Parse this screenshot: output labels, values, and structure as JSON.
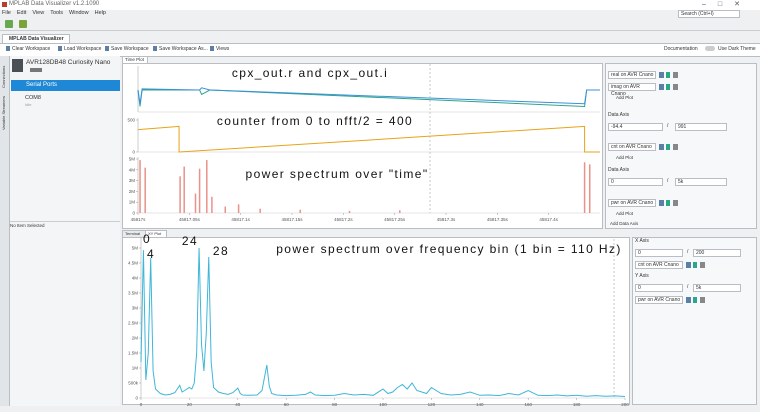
{
  "app": {
    "title": "MPLAB Data Visualizer v1.2.1090",
    "menu": [
      "File",
      "Edit",
      "View",
      "Tools",
      "Window",
      "Help"
    ],
    "search": "Search (Ctrl+I)",
    "tab": "MPLAB Data Visualizer",
    "toolbar": [
      "Clear Workspace",
      "Load Workspace",
      "Save Workspace",
      "Save Workspace As...",
      "Views"
    ],
    "documentation": "Documentation",
    "theme": "Use Dark Theme"
  },
  "sidebar": {
    "tabs": [
      "Connections",
      "Variable Streamers"
    ],
    "device": "AVR128DB48 Curiosity Nano",
    "serial_ports": "Serial Ports",
    "port": "COM8",
    "port_status": "Idle",
    "status": "No Item Selected"
  },
  "time_plot": {
    "tab": "Time Plot"
  },
  "time_settings": {
    "axes": [
      {
        "sources": [
          "real on AVR Cnano",
          "imag on AVR Cnano"
        ],
        "add_plot": "Add Plot"
      },
      {
        "label": "Data Axis",
        "min": "-94.4",
        "sep": "/",
        "max": "991",
        "sources": [
          "cnt on AVR Cnano"
        ],
        "add_plot": "Add Plot"
      },
      {
        "label": "Data Axis",
        "min": "0",
        "sep": "/",
        "max": "5k",
        "sources": [
          "pwr on AVR Cnano"
        ],
        "add_plot": "Add Plot"
      }
    ],
    "add_axis": "Add Data Axis"
  },
  "xy_plot": {
    "tabs": [
      "Terminal",
      "XY Plot"
    ]
  },
  "xy_settings": {
    "axes": [
      {
        "label": "X Axis",
        "min": "0",
        "sep": "/",
        "max": "200",
        "sources": [
          "cnt on AVR Cnano"
        ]
      },
      {
        "label": "Y Axis",
        "min": "0",
        "sep": "/",
        "max": "5k",
        "sources": [
          "pwr on AVR Cnano"
        ]
      }
    ]
  },
  "chart_data": [
    {
      "type": "line",
      "annotations": [
        "cpx_out.r and cpx_out.i"
      ],
      "xlim": [
        45817,
        45817.45
      ],
      "ylim": [
        -400,
        400
      ],
      "series": [
        {
          "color": "#2ca58d",
          "x": [
            45817,
            45817.002,
            45817.004,
            45817.06,
            45817.062,
            45817.07,
            45817.435,
            45817.437,
            45817.45
          ],
          "values": [
            0,
            -300,
            0,
            0,
            -80,
            0,
            -300,
            0,
            0
          ]
        },
        {
          "color": "#3b8fd9",
          "x": [
            45817,
            45817.002,
            45817.004,
            45817.06,
            45817.062,
            45817.07,
            45817.435,
            45817.437,
            45817.45
          ],
          "values": [
            0,
            -250,
            20,
            0,
            40,
            0,
            -250,
            0,
            0
          ]
        }
      ]
    },
    {
      "type": "line",
      "annotations": [
        "counter from 0 to nfft/2 = 400"
      ],
      "xlim": [
        45817,
        45817.45
      ],
      "ylim": [
        0,
        500
      ],
      "yticks": [
        0,
        500
      ],
      "series": [
        {
          "color": "#e8a317",
          "x": [
            45817,
            45817.04,
            45817.04,
            45817.435,
            45817.435,
            45817.45
          ],
          "values": [
            350,
            400,
            0,
            400,
            0,
            0
          ]
        }
      ]
    },
    {
      "type": "bar",
      "annotations": [
        "power spectrum over \"time\""
      ],
      "xlim": [
        45817,
        45817.45
      ],
      "ylim": [
        0,
        5000000
      ],
      "yticks": [
        0,
        {
          "value": 1000000,
          "label": "1M"
        },
        {
          "value": 2000000,
          "label": "2M"
        },
        {
          "value": 3000000,
          "label": "3M"
        },
        {
          "value": 4000000,
          "label": "4M"
        },
        {
          "value": 5000000,
          "label": "5M"
        }
      ],
      "xticks": [
        {
          "value": 45817,
          "label": "45817s"
        },
        {
          "value": 45817.05,
          "label": "45817.05s"
        },
        {
          "value": 45817.1,
          "label": "45817.1s"
        },
        {
          "value": 45817.15,
          "label": "45817.15s"
        },
        {
          "value": 45817.2,
          "label": "45817.2s"
        },
        {
          "value": 45817.25,
          "label": "45817.25s"
        },
        {
          "value": 45817.3,
          "label": "45817.3s"
        },
        {
          "value": 45817.35,
          "label": "45817.35s"
        },
        {
          "value": 45817.4,
          "label": "45817.4s"
        }
      ],
      "series": [
        {
          "color": "#e8928a",
          "x": [
            45817.002,
            45817.007,
            45817.041,
            45817.045,
            45817.056,
            45817.06,
            45817.067,
            45817.072,
            45817.085,
            45817.098,
            45817.119,
            45817.158,
            45817.206,
            45817.255,
            45817.435,
            45817.44
          ],
          "values": [
            4900000,
            4200000,
            3400000,
            4300000,
            1800000,
            4100000,
            4900000,
            1500000,
            600000,
            800000,
            400000,
            300000,
            200000,
            250000,
            4700000,
            4500000
          ]
        }
      ]
    },
    {
      "type": "line",
      "annotations": [
        "power spectrum over frequency bin (1 bin = 110 Hz)",
        "0",
        "4",
        "24",
        "28"
      ],
      "xlim": [
        0,
        200
      ],
      "ylim": [
        0,
        5300000
      ],
      "xticks": [
        0,
        20,
        40,
        60,
        80,
        100,
        120,
        140,
        160,
        180,
        200
      ],
      "yticks": [
        0,
        {
          "value": 500000,
          "label": "500k"
        },
        {
          "value": 1000000,
          "label": "1M"
        },
        {
          "value": 1500000,
          "label": "1.5M"
        },
        {
          "value": 2000000,
          "label": "2M"
        },
        {
          "value": 2500000,
          "label": "2.5M"
        },
        {
          "value": 3000000,
          "label": "3M"
        },
        {
          "value": 3500000,
          "label": "3.5M"
        },
        {
          "value": 4000000,
          "label": "4M"
        },
        {
          "value": 4500000,
          "label": "4.5M"
        },
        {
          "value": 5000000,
          "label": "5M"
        }
      ],
      "series": [
        {
          "color": "#3fb6d8",
          "x": [
            0,
            1,
            2,
            3,
            4,
            5,
            6,
            8,
            10,
            12,
            14,
            16,
            17,
            18,
            20,
            21,
            22,
            23,
            24,
            25,
            26,
            27,
            28,
            29,
            30,
            32,
            34,
            36,
            38,
            40,
            41,
            42,
            44,
            48,
            50,
            52,
            53,
            54,
            56,
            60,
            64,
            68,
            70,
            72,
            76,
            80,
            84,
            88,
            92,
            96,
            100,
            102,
            104,
            106,
            108,
            110,
            112,
            114,
            116,
            118,
            120,
            124,
            128,
            132,
            136,
            140,
            144,
            148,
            152,
            156,
            160,
            164,
            168,
            172,
            176,
            180,
            184,
            188,
            192,
            196,
            200
          ],
          "values": [
            1200000,
            4930000,
            600000,
            1500000,
            4670000,
            900000,
            300000,
            150000,
            100000,
            120000,
            180000,
            420000,
            200000,
            250000,
            350000,
            300000,
            500000,
            1500000,
            5000000,
            1800000,
            900000,
            2200000,
            4700000,
            1200000,
            350000,
            200000,
            150000,
            120000,
            180000,
            330000,
            150000,
            100000,
            90000,
            100000,
            250000,
            1100000,
            400000,
            150000,
            100000,
            80000,
            90000,
            120000,
            200000,
            100000,
            80000,
            90000,
            150000,
            100000,
            120000,
            90000,
            300000,
            150000,
            200000,
            350000,
            450000,
            300000,
            500000,
            250000,
            200000,
            150000,
            350000,
            150000,
            100000,
            120000,
            200000,
            90000,
            100000,
            80000,
            150000,
            100000,
            250000,
            90000,
            80000,
            100000,
            70000,
            90000,
            60000,
            80000,
            60000,
            70000,
            50000
          ]
        }
      ]
    }
  ]
}
